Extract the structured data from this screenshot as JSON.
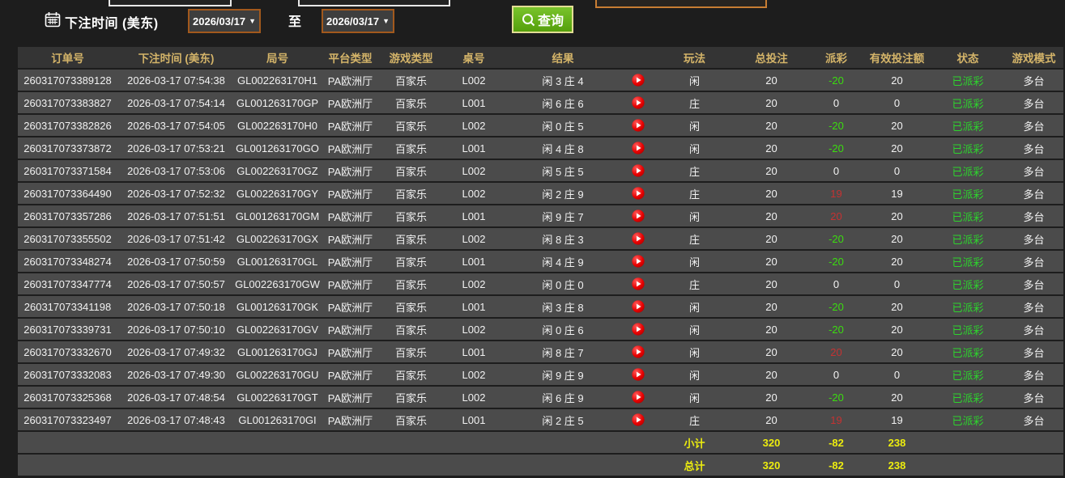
{
  "filter_bar": {
    "label": "下注时间 (美东)",
    "date_from": "2026/03/17",
    "date_to": "2026/03/17",
    "dropdown_arrow": "▼",
    "to_label": "至",
    "search_label": "查询"
  },
  "colors": {
    "header_text": "#d4b469",
    "payout_negative": "#3bdc0f",
    "payout_positive": "#c53232",
    "status_green": "#2dd42d",
    "totals_yellow": "#eded0e",
    "button_green": "#66b21c",
    "date_border_orange": "#a2591d",
    "play_icon_red": "#e60000"
  },
  "table": {
    "columns": [
      "订单号",
      "下注时间 (美东)",
      "局号",
      "平台类型",
      "游戏类型",
      "桌号",
      "结果",
      "",
      "玩法",
      "总投注",
      "派彩",
      "有效投注额",
      "状态",
      "游戏模式"
    ],
    "rows": [
      {
        "order": "260317073389128",
        "time": "2026-03-17 07:54:38",
        "round": "GL002263170H1",
        "platform": "PA欧洲厅",
        "game_type": "百家乐",
        "table_no": "L002",
        "result": "闲 3 庄 4",
        "play": "闲",
        "total_bet": "20",
        "payout": "-20",
        "valid_bet": "20",
        "status": "已派彩",
        "mode": "多台"
      },
      {
        "order": "260317073383827",
        "time": "2026-03-17 07:54:14",
        "round": "GL001263170GP",
        "platform": "PA欧洲厅",
        "game_type": "百家乐",
        "table_no": "L001",
        "result": "闲 6 庄 6",
        "play": "庄",
        "total_bet": "20",
        "payout": "0",
        "valid_bet": "0",
        "status": "已派彩",
        "mode": "多台"
      },
      {
        "order": "260317073382826",
        "time": "2026-03-17 07:54:05",
        "round": "GL002263170H0",
        "platform": "PA欧洲厅",
        "game_type": "百家乐",
        "table_no": "L002",
        "result": "闲 0 庄 5",
        "play": "闲",
        "total_bet": "20",
        "payout": "-20",
        "valid_bet": "20",
        "status": "已派彩",
        "mode": "多台"
      },
      {
        "order": "260317073373872",
        "time": "2026-03-17 07:53:21",
        "round": "GL001263170GO",
        "platform": "PA欧洲厅",
        "game_type": "百家乐",
        "table_no": "L001",
        "result": "闲 4 庄 8",
        "play": "闲",
        "total_bet": "20",
        "payout": "-20",
        "valid_bet": "20",
        "status": "已派彩",
        "mode": "多台"
      },
      {
        "order": "260317073371584",
        "time": "2026-03-17 07:53:06",
        "round": "GL002263170GZ",
        "platform": "PA欧洲厅",
        "game_type": "百家乐",
        "table_no": "L002",
        "result": "闲 5 庄 5",
        "play": "庄",
        "total_bet": "20",
        "payout": "0",
        "valid_bet": "0",
        "status": "已派彩",
        "mode": "多台"
      },
      {
        "order": "260317073364490",
        "time": "2026-03-17 07:52:32",
        "round": "GL002263170GY",
        "platform": "PA欧洲厅",
        "game_type": "百家乐",
        "table_no": "L002",
        "result": "闲 2 庄 9",
        "play": "庄",
        "total_bet": "20",
        "payout": "19",
        "valid_bet": "19",
        "status": "已派彩",
        "mode": "多台"
      },
      {
        "order": "260317073357286",
        "time": "2026-03-17 07:51:51",
        "round": "GL001263170GM",
        "platform": "PA欧洲厅",
        "game_type": "百家乐",
        "table_no": "L001",
        "result": "闲 9 庄 7",
        "play": "闲",
        "total_bet": "20",
        "payout": "20",
        "valid_bet": "20",
        "status": "已派彩",
        "mode": "多台"
      },
      {
        "order": "260317073355502",
        "time": "2026-03-17 07:51:42",
        "round": "GL002263170GX",
        "platform": "PA欧洲厅",
        "game_type": "百家乐",
        "table_no": "L002",
        "result": "闲 8 庄 3",
        "play": "庄",
        "total_bet": "20",
        "payout": "-20",
        "valid_bet": "20",
        "status": "已派彩",
        "mode": "多台"
      },
      {
        "order": "260317073348274",
        "time": "2026-03-17 07:50:59",
        "round": "GL001263170GL",
        "platform": "PA欧洲厅",
        "game_type": "百家乐",
        "table_no": "L001",
        "result": "闲 4 庄 9",
        "play": "闲",
        "total_bet": "20",
        "payout": "-20",
        "valid_bet": "20",
        "status": "已派彩",
        "mode": "多台"
      },
      {
        "order": "260317073347774",
        "time": "2026-03-17 07:50:57",
        "round": "GL002263170GW",
        "platform": "PA欧洲厅",
        "game_type": "百家乐",
        "table_no": "L002",
        "result": "闲 0 庄 0",
        "play": "庄",
        "total_bet": "20",
        "payout": "0",
        "valid_bet": "0",
        "status": "已派彩",
        "mode": "多台"
      },
      {
        "order": "260317073341198",
        "time": "2026-03-17 07:50:18",
        "round": "GL001263170GK",
        "platform": "PA欧洲厅",
        "game_type": "百家乐",
        "table_no": "L001",
        "result": "闲 3 庄 8",
        "play": "闲",
        "total_bet": "20",
        "payout": "-20",
        "valid_bet": "20",
        "status": "已派彩",
        "mode": "多台"
      },
      {
        "order": "260317073339731",
        "time": "2026-03-17 07:50:10",
        "round": "GL002263170GV",
        "platform": "PA欧洲厅",
        "game_type": "百家乐",
        "table_no": "L002",
        "result": "闲 0 庄 6",
        "play": "闲",
        "total_bet": "20",
        "payout": "-20",
        "valid_bet": "20",
        "status": "已派彩",
        "mode": "多台"
      },
      {
        "order": "260317073332670",
        "time": "2026-03-17 07:49:32",
        "round": "GL001263170GJ",
        "platform": "PA欧洲厅",
        "game_type": "百家乐",
        "table_no": "L001",
        "result": "闲 8 庄 7",
        "play": "闲",
        "total_bet": "20",
        "payout": "20",
        "valid_bet": "20",
        "status": "已派彩",
        "mode": "多台"
      },
      {
        "order": "260317073332083",
        "time": "2026-03-17 07:49:30",
        "round": "GL002263170GU",
        "platform": "PA欧洲厅",
        "game_type": "百家乐",
        "table_no": "L002",
        "result": "闲 9 庄 9",
        "play": "闲",
        "total_bet": "20",
        "payout": "0",
        "valid_bet": "0",
        "status": "已派彩",
        "mode": "多台"
      },
      {
        "order": "260317073325368",
        "time": "2026-03-17 07:48:54",
        "round": "GL002263170GT",
        "platform": "PA欧洲厅",
        "game_type": "百家乐",
        "table_no": "L002",
        "result": "闲 6 庄 9",
        "play": "闲",
        "total_bet": "20",
        "payout": "-20",
        "valid_bet": "20",
        "status": "已派彩",
        "mode": "多台"
      },
      {
        "order": "260317073323497",
        "time": "2026-03-17 07:48:43",
        "round": "GL001263170GI",
        "platform": "PA欧洲厅",
        "game_type": "百家乐",
        "table_no": "L001",
        "result": "闲 2 庄 5",
        "play": "庄",
        "total_bet": "20",
        "payout": "19",
        "valid_bet": "19",
        "status": "已派彩",
        "mode": "多台"
      }
    ],
    "subtotal": {
      "label": "小计",
      "total_bet": "320",
      "payout": "-82",
      "valid_bet": "238"
    },
    "total": {
      "label": "总计",
      "total_bet": "320",
      "payout": "-82",
      "valid_bet": "238"
    }
  }
}
